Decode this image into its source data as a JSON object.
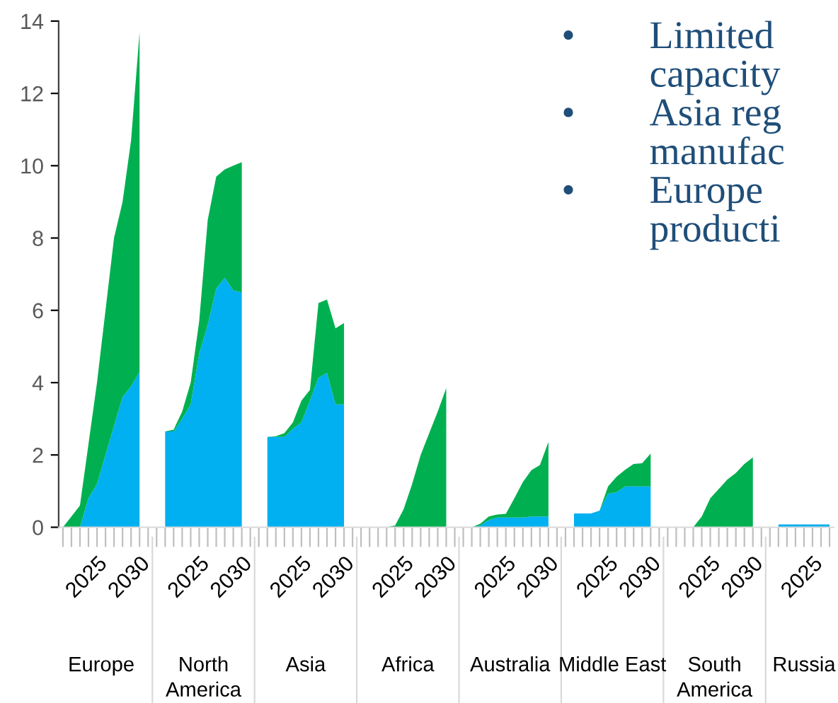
{
  "chart_data": {
    "type": "area",
    "stacked": true,
    "ylim": [
      0,
      14
    ],
    "yticks": [
      0,
      2,
      4,
      6,
      8,
      10,
      12,
      14
    ],
    "categories": [
      null,
      null,
      null,
      null,
      "2025",
      null,
      null,
      null,
      null,
      "2030",
      null,
      null,
      null,
      null,
      null,
      null,
      "2025",
      null,
      null,
      null,
      null,
      "2030",
      null,
      null,
      null,
      null,
      null,
      null,
      "2025",
      null,
      null,
      null,
      null,
      "2030",
      null,
      null,
      null,
      null,
      null,
      null,
      "2025",
      null,
      null,
      null,
      null,
      "2030",
      null,
      null,
      null,
      null,
      null,
      null,
      "2025",
      null,
      null,
      null,
      null,
      "2030",
      null,
      null,
      null,
      null,
      null,
      null,
      "2025",
      null,
      null,
      null,
      null,
      "2030",
      null,
      null,
      null,
      null,
      null,
      null,
      "2025",
      null,
      null,
      null,
      null,
      "2030",
      null,
      null,
      null,
      null,
      null,
      null,
      "2025",
      null,
      null
    ],
    "series": [
      {
        "color": "#00b0f0",
        "values": [
          0,
          0,
          0,
          0.8,
          1.2,
          2.0,
          2.8,
          3.6,
          3.9,
          4.3,
          null,
          null,
          2.65,
          2.65,
          3.0,
          3.4,
          4.8,
          5.6,
          6.6,
          6.9,
          6.55,
          6.5,
          null,
          null,
          2.5,
          2.5,
          2.5,
          2.72,
          2.9,
          3.5,
          4.13,
          4.27,
          3.4,
          3.4,
          null,
          null,
          null,
          null,
          null,
          null,
          null,
          null,
          null,
          null,
          null,
          null,
          null,
          null,
          0,
          0.05,
          0.2,
          0.27,
          0.27,
          0.27,
          0.27,
          0.3,
          0.3,
          0.3,
          null,
          null,
          0.38,
          0.38,
          0.38,
          0.46,
          0.93,
          0.97,
          1.13,
          1.13,
          1.13,
          1.13,
          null,
          null,
          null,
          null,
          null,
          null,
          null,
          null,
          null,
          null,
          null,
          null,
          null,
          null,
          0.08,
          0.08,
          0.08,
          0.08,
          0.08,
          0.08,
          0.08
        ]
      },
      {
        "color": "#00b050",
        "values": [
          0,
          0.3,
          0.6,
          1.5,
          2.8,
          4.0,
          5.2,
          5.4,
          6.8,
          9.4,
          null,
          null,
          0,
          0.05,
          0.2,
          0.6,
          0.9,
          2.9,
          3.1,
          3.0,
          3.45,
          3.6,
          null,
          null,
          0,
          0.02,
          0.1,
          0.18,
          0.6,
          0.3,
          2.07,
          2.03,
          2.1,
          2.25,
          null,
          null,
          0,
          0,
          0,
          0.05,
          0.5,
          1.2,
          2.0,
          2.6,
          3.2,
          3.85,
          null,
          null,
          0,
          0.05,
          0.1,
          0.08,
          0.1,
          0.53,
          0.98,
          1.28,
          1.42,
          2.06,
          null,
          null,
          0,
          0,
          0,
          0,
          0.2,
          0.43,
          0.46,
          0.62,
          0.64,
          0.91,
          null,
          null,
          0,
          0,
          0,
          0.3,
          0.8,
          1.06,
          1.32,
          1.5,
          1.75,
          1.93,
          null,
          null,
          null,
          null,
          null,
          null,
          null,
          null,
          null
        ]
      }
    ],
    "annotations": [
      "Europe",
      "North\nAmerica",
      "Asia",
      "Africa",
      "Australia",
      "Middle East",
      "South\nAmerica",
      "Russia",
      "•",
      "Limited",
      "capacity",
      "•",
      "Asia reg",
      "manufac",
      "•",
      "Europe",
      "producti"
    ]
  }
}
